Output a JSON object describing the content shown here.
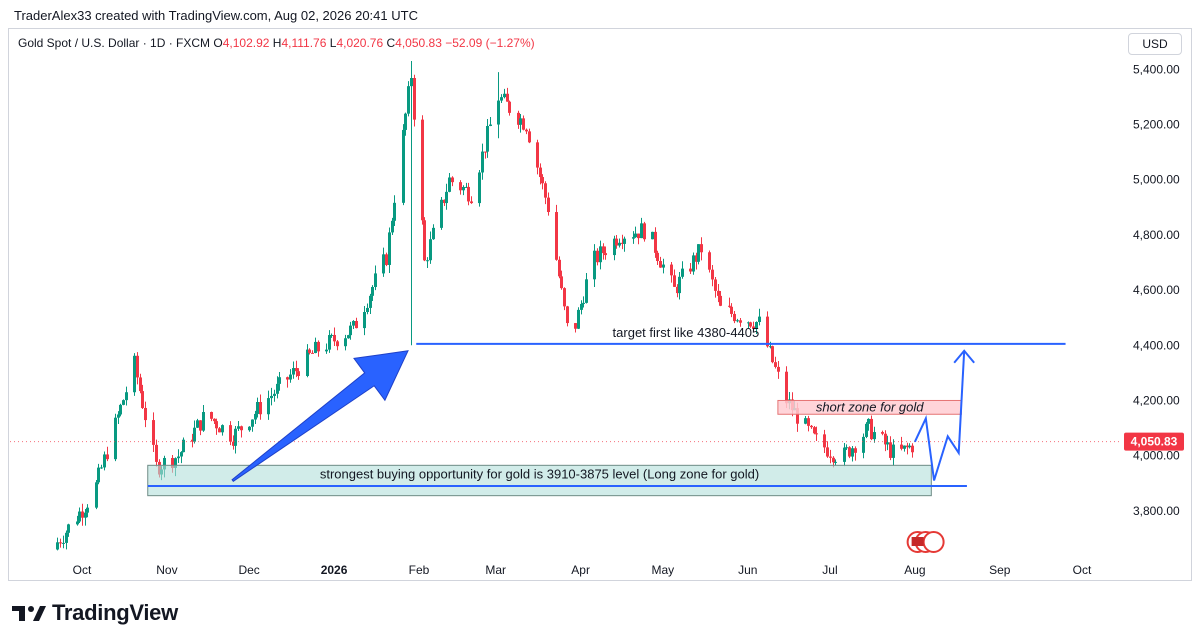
{
  "header": {
    "attribution": "TraderAlex33 created with TradingView.com, Aug 02, 2026 20:41 UTC"
  },
  "legend": {
    "symbol": "Gold Spot / U.S. Dollar · 1D · FXCM",
    "o_label": "O",
    "o_value": "4,102.92",
    "h_label": "H",
    "h_value": "4,111.76",
    "l_label": "L",
    "l_value": "4,020.76",
    "c_label": "C",
    "c_value": "4,050.83",
    "change": "−52.09 (−1.27%)"
  },
  "currency_button": "USD",
  "brand": {
    "name": "TradingView"
  },
  "colors": {
    "up": "#089981",
    "down": "#f23645",
    "line": "#2962ff",
    "arrow": "#2962ff",
    "long_zone": "#b2dfdb",
    "short_zone": "#ffcdd2",
    "price_tag": "#f23645"
  },
  "chart_data": {
    "type": "candlestick",
    "symbol": "XAUUSD",
    "timeframe": "1D",
    "x_labels": [
      "Oct",
      "Nov",
      "Dec",
      "2026",
      "Feb",
      "Mar",
      "Apr",
      "May",
      "Jun",
      "Jul",
      "Aug",
      "Sep",
      "Oct"
    ],
    "y_ticks": [
      "3,800.00",
      "4,000.00",
      "4,200.00",
      "4,400.00",
      "4,600.00",
      "4,800.00",
      "5,000.00",
      "5,200.00",
      "5,400.00"
    ],
    "y_range": [
      3640,
      5470
    ],
    "last_price": 4050.83,
    "last_price_label": "4,050.83",
    "price_path": [
      [
        "2025-09-20",
        3660
      ],
      [
        "2025-10-05",
        3860
      ],
      [
        "2025-10-20",
        4330
      ],
      [
        "2025-10-28",
        3960
      ],
      [
        "2025-11-05",
        4000
      ],
      [
        "2025-11-15",
        4150
      ],
      [
        "2025-11-25",
        4070
      ],
      [
        "2025-12-10",
        4230
      ],
      [
        "2025-12-25",
        4380
      ],
      [
        "2026-01-08",
        4460
      ],
      [
        "2026-01-20",
        4720
      ],
      [
        "2026-01-29",
        5380
      ],
      [
        "2026-02-03",
        4700
      ],
      [
        "2026-02-12",
        5000
      ],
      [
        "2026-02-20",
        4950
      ],
      [
        "2026-03-02",
        5300
      ],
      [
        "2026-03-12",
        5200
      ],
      [
        "2026-03-20",
        4900
      ],
      [
        "2026-03-28",
        4400
      ],
      [
        "2026-04-05",
        4700
      ],
      [
        "2026-04-15",
        4800
      ],
      [
        "2026-04-25",
        4820
      ],
      [
        "2026-05-05",
        4600
      ],
      [
        "2026-05-15",
        4750
      ],
      [
        "2026-05-22",
        4530
      ],
      [
        "2026-06-05",
        4480
      ],
      [
        "2026-06-15",
        4200
      ],
      [
        "2026-06-25",
        4060
      ],
      [
        "2026-07-05",
        3990
      ],
      [
        "2026-07-15",
        4100
      ],
      [
        "2026-07-25",
        4000
      ],
      [
        "2026-08-02",
        4050
      ]
    ],
    "wick_extremes": [
      [
        "2026-01-29",
        5430,
        4400
      ],
      [
        "2026-03-02",
        5390,
        5150
      ],
      [
        "2026-03-21",
        4810,
        4090
      ]
    ],
    "annotations": [
      {
        "type": "hline",
        "label": "target first like 4380-4405",
        "price": 4405,
        "from": "2026-01-31",
        "to": "2026-09-25"
      },
      {
        "type": "rect",
        "label": "short zone for gold",
        "top": 4200,
        "bottom": 4150,
        "from": "2026-06-12",
        "to": "2026-08-18"
      },
      {
        "type": "rect",
        "label": "strongest buying opportunity for gold is 3910-3875 level (Long zone for gold)",
        "top": 3965,
        "bottom": 3855,
        "from": "2025-10-25",
        "to": "2026-08-07"
      },
      {
        "type": "hline",
        "label": "",
        "price": 3890,
        "from": "2025-10-25",
        "to": "2026-08-20"
      },
      {
        "type": "arrow",
        "label": "",
        "from": [
          "2025-11-25",
          3910
        ],
        "to": [
          "2026-01-28",
          4380
        ]
      },
      {
        "type": "path",
        "label": "",
        "points": [
          [
            "2026-08-01",
            4050
          ],
          [
            "2026-08-05",
            4135
          ],
          [
            "2026-08-08",
            3910
          ],
          [
            "2026-08-13",
            4070
          ],
          [
            "2026-08-17",
            4010
          ],
          [
            "2026-08-19",
            4380
          ]
        ]
      }
    ]
  }
}
